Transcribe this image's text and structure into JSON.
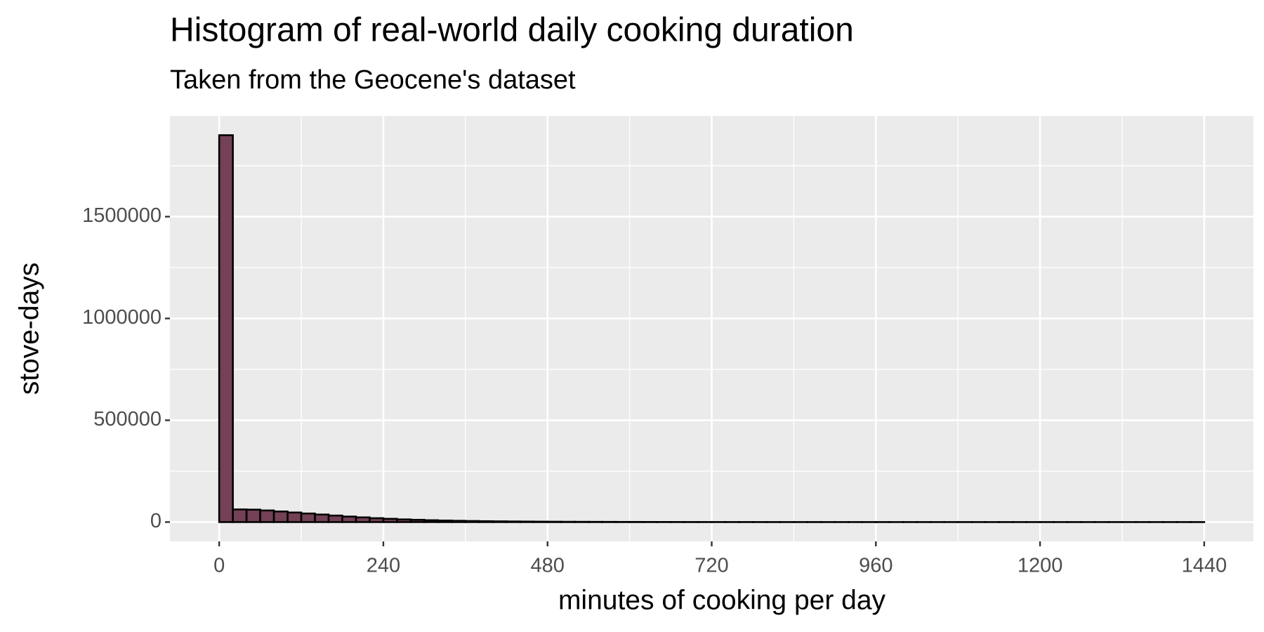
{
  "chart_data": {
    "type": "histogram",
    "title": "Histogram of real-world daily cooking duration",
    "subtitle": "Taken from the Geocene's dataset",
    "xlabel": "minutes of cooking per day",
    "ylabel": "stove-days",
    "bins": [
      0,
      20,
      40,
      60,
      80,
      100,
      120,
      140,
      160,
      180,
      200,
      220,
      240,
      260,
      280,
      300,
      320,
      340,
      360,
      380,
      400,
      420,
      440,
      460,
      480,
      500,
      520,
      540,
      560,
      580,
      600,
      620,
      640,
      660,
      680,
      700,
      720,
      740,
      760,
      780,
      800,
      820,
      840,
      860,
      880,
      900,
      920,
      940,
      960,
      980,
      1000,
      1020,
      1040,
      1060,
      1080,
      1100,
      1120,
      1140,
      1160,
      1180,
      1200,
      1220,
      1240,
      1260,
      1280,
      1300,
      1320,
      1340,
      1360,
      1380,
      1400,
      1420,
      1440
    ],
    "values": [
      1900000,
      62000,
      61000,
      57000,
      52000,
      47000,
      42000,
      37000,
      32000,
      27000,
      23000,
      19000,
      16000,
      13000,
      11000,
      9000,
      7500,
      6200,
      5100,
      4200,
      3500,
      2900,
      2400,
      2000,
      1700,
      1400,
      1200,
      1000,
      850,
      700,
      600,
      500,
      420,
      360,
      300,
      260,
      220,
      190,
      160,
      140,
      120,
      100,
      90,
      80,
      70,
      60,
      55,
      50,
      45,
      40,
      36,
      32,
      29,
      26,
      24,
      22,
      20,
      18,
      17,
      16,
      15,
      14,
      13,
      12,
      11,
      10,
      10,
      10,
      9,
      9,
      8,
      20
    ],
    "color": "#744157",
    "xlim": [
      -72,
      1512
    ],
    "xticks": [
      0,
      240,
      480,
      720,
      960,
      1200,
      1440
    ],
    "ylim": [
      -95000,
      1995000
    ],
    "yticks": [
      0,
      500000,
      1000000,
      1500000
    ],
    "grid": true
  }
}
